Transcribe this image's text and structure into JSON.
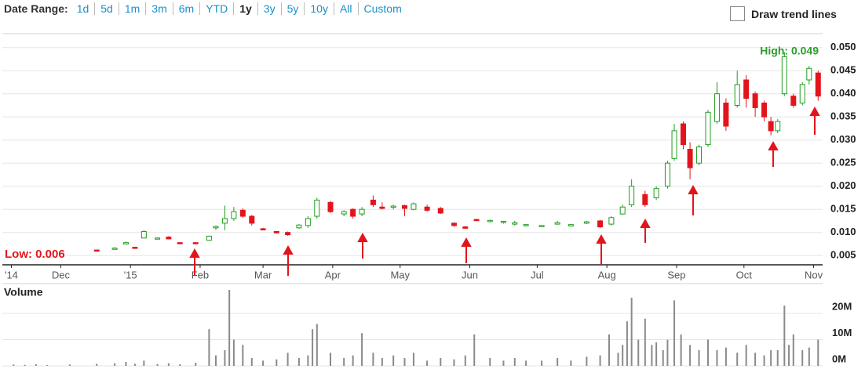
{
  "date_range": {
    "label": "Date Range:",
    "options": [
      "1d",
      "5d",
      "1m",
      "3m",
      "6m",
      "YTD",
      "1y",
      "3y",
      "5y",
      "10y",
      "All",
      "Custom"
    ],
    "selected": "1y"
  },
  "trend_toggle": {
    "label": "Draw trend lines"
  },
  "chart_data": [
    {
      "type": "candlestick",
      "annotations": [
        {
          "text": "High: 0.049",
          "color": "#2a9d2a"
        },
        {
          "text": "Low: 0.006",
          "color": "#e3141c"
        }
      ],
      "xlim": [
        0,
        365
      ],
      "xticks": [
        {
          "value": 4,
          "label": "'14"
        },
        {
          "value": 26,
          "label": "Dec"
        },
        {
          "value": 57,
          "label": "'15"
        },
        {
          "value": 88,
          "label": "Feb"
        },
        {
          "value": 116,
          "label": "Mar"
        },
        {
          "value": 147,
          "label": "Apr"
        },
        {
          "value": 177,
          "label": "May"
        },
        {
          "value": 208,
          "label": "Jun"
        },
        {
          "value": 238,
          "label": "Jul"
        },
        {
          "value": 269,
          "label": "Aug"
        },
        {
          "value": 300,
          "label": "Sep"
        },
        {
          "value": 330,
          "label": "Oct"
        },
        {
          "value": 361,
          "label": "Nov"
        }
      ],
      "ylim": [
        0.003,
        0.053
      ],
      "yticks": [
        0.005,
        {
          "value": 0.01,
          "label": "0.010"
        },
        0.015,
        {
          "value": 0.02,
          "label": "0.020"
        },
        0.025,
        {
          "value": 0.03,
          "label": "0.030"
        },
        0.035,
        {
          "value": 0.04,
          "label": "0.040"
        },
        0.045,
        {
          "value": 0.05,
          "label": "0.050"
        }
      ],
      "grid": true,
      "up_color": "#1e9e1e",
      "down_color": "#e3141c",
      "x": [
        42,
        50,
        55,
        59,
        63,
        69,
        74,
        79,
        86,
        92,
        95,
        99,
        103,
        107,
        111,
        116,
        122,
        127,
        132,
        136,
        140,
        146,
        152,
        156,
        160,
        165,
        169,
        174,
        179,
        183,
        189,
        195,
        201,
        206,
        211,
        217,
        223,
        228,
        233,
        240,
        247,
        253,
        260,
        266,
        271,
        276,
        280,
        286,
        291,
        296,
        299,
        303,
        306,
        310,
        314,
        318,
        322,
        327,
        331,
        335,
        339,
        342,
        345,
        348,
        352,
        356,
        359,
        363
      ],
      "open": [
        0.0062,
        0.0065,
        0.0075,
        0.0068,
        0.0088,
        0.0088,
        0.009,
        0.0078,
        0.0078,
        0.0083,
        0.011,
        0.012,
        0.013,
        0.0148,
        0.0135,
        0.0108,
        0.0102,
        0.01,
        0.011,
        0.0115,
        0.0135,
        0.0165,
        0.014,
        0.015,
        0.014,
        0.017,
        0.0155,
        0.0155,
        0.0158,
        0.015,
        0.0155,
        0.0152,
        0.012,
        0.0112,
        0.0128,
        0.0125,
        0.0122,
        0.0118,
        0.0115,
        0.0114,
        0.0118,
        0.0114,
        0.012,
        0.0125,
        0.0118,
        0.014,
        0.016,
        0.0182,
        0.0175,
        0.02,
        0.026,
        0.0335,
        0.028,
        0.025,
        0.029,
        0.034,
        0.038,
        0.0375,
        0.043,
        0.04,
        0.038,
        0.034,
        0.032,
        0.04,
        0.0395,
        0.038,
        0.043,
        0.0445
      ],
      "high": [
        0.0063,
        0.0068,
        0.008,
        0.0069,
        0.0105,
        0.0089,
        0.0092,
        0.0079,
        0.0079,
        0.0093,
        0.0115,
        0.0158,
        0.0155,
        0.0152,
        0.0138,
        0.011,
        0.0103,
        0.0102,
        0.0118,
        0.0135,
        0.0175,
        0.0168,
        0.0148,
        0.0152,
        0.0155,
        0.018,
        0.0165,
        0.016,
        0.016,
        0.0165,
        0.016,
        0.0155,
        0.0122,
        0.0114,
        0.013,
        0.0128,
        0.0125,
        0.0125,
        0.0118,
        0.0116,
        0.0125,
        0.0118,
        0.0125,
        0.0127,
        0.0135,
        0.016,
        0.0215,
        0.019,
        0.02,
        0.0255,
        0.0335,
        0.034,
        0.0295,
        0.029,
        0.0365,
        0.0425,
        0.039,
        0.045,
        0.044,
        0.0405,
        0.0385,
        0.035,
        0.0345,
        0.049,
        0.04,
        0.0425,
        0.046,
        0.045
      ],
      "low": [
        0.006,
        0.0064,
        0.0074,
        0.0066,
        0.0087,
        0.0087,
        0.0085,
        0.0076,
        0.0076,
        0.0082,
        0.0105,
        0.0105,
        0.0125,
        0.0132,
        0.0115,
        0.0105,
        0.0098,
        0.0093,
        0.0108,
        0.011,
        0.013,
        0.0142,
        0.0135,
        0.013,
        0.0135,
        0.0155,
        0.015,
        0.015,
        0.0135,
        0.0148,
        0.0145,
        0.014,
        0.0112,
        0.0108,
        0.0125,
        0.0122,
        0.0119,
        0.0115,
        0.0113,
        0.0112,
        0.0117,
        0.0113,
        0.0118,
        0.011,
        0.0115,
        0.0138,
        0.0155,
        0.0155,
        0.017,
        0.0195,
        0.0255,
        0.028,
        0.0215,
        0.0245,
        0.0285,
        0.0335,
        0.032,
        0.037,
        0.037,
        0.035,
        0.034,
        0.031,
        0.0315,
        0.0395,
        0.037,
        0.0375,
        0.042,
        0.0385
      ],
      "close": [
        0.006,
        0.0066,
        0.0078,
        0.0067,
        0.0102,
        0.0088,
        0.0086,
        0.0077,
        0.0077,
        0.0092,
        0.0113,
        0.013,
        0.0145,
        0.0135,
        0.012,
        0.0107,
        0.0099,
        0.0095,
        0.0116,
        0.013,
        0.017,
        0.0145,
        0.0145,
        0.0135,
        0.015,
        0.016,
        0.0152,
        0.0157,
        0.0152,
        0.0162,
        0.0148,
        0.0142,
        0.0115,
        0.0109,
        0.0127,
        0.0126,
        0.0124,
        0.0121,
        0.0117,
        0.0115,
        0.0121,
        0.0117,
        0.0123,
        0.0112,
        0.0132,
        0.0155,
        0.02,
        0.016,
        0.0195,
        0.025,
        0.032,
        0.029,
        0.024,
        0.0285,
        0.036,
        0.04,
        0.033,
        0.042,
        0.039,
        0.037,
        0.035,
        0.032,
        0.034,
        0.048,
        0.0375,
        0.042,
        0.0455,
        0.0395
      ]
    },
    {
      "type": "bar",
      "title": "Volume",
      "color": "#8a8a8a",
      "xlim": [
        0,
        365
      ],
      "ylim": [
        0,
        29000000
      ],
      "yticks": [
        {
          "value": 0,
          "label": "0M"
        },
        {
          "value": 10000000,
          "label": "10M"
        },
        {
          "value": 20000000,
          "label": "20M"
        }
      ],
      "grid": true,
      "x": [
        5,
        10,
        15,
        20,
        30,
        42,
        50,
        55,
        59,
        63,
        69,
        74,
        79,
        86,
        92,
        95,
        99,
        101,
        103,
        107,
        111,
        116,
        122,
        127,
        132,
        136,
        138,
        140,
        146,
        152,
        156,
        160,
        165,
        169,
        174,
        179,
        183,
        189,
        195,
        201,
        206,
        210,
        217,
        223,
        228,
        233,
        240,
        247,
        253,
        260,
        266,
        270,
        274,
        276,
        278,
        280,
        283,
        286,
        289,
        291,
        294,
        296,
        299,
        302,
        306,
        310,
        314,
        318,
        322,
        327,
        331,
        335,
        339,
        342,
        345,
        348,
        350,
        352,
        356,
        359,
        363
      ],
      "values": [
        500000,
        400000,
        600000,
        300000,
        500000,
        800000,
        1000000,
        1500000,
        800000,
        2000000,
        700000,
        1000000,
        600000,
        1200000,
        14000000,
        4000000,
        6000000,
        29000000,
        10000000,
        8000000,
        3000000,
        2000000,
        2500000,
        5000000,
        3000000,
        4000000,
        14000000,
        16000000,
        5000000,
        3000000,
        4000000,
        12500000,
        5000000,
        3000000,
        4000000,
        3000000,
        5000000,
        2000000,
        3000000,
        2500000,
        4000000,
        12000000,
        3000000,
        2000000,
        3000000,
        2000000,
        2000000,
        3000000,
        2000000,
        3500000,
        4000000,
        12000000,
        5000000,
        8000000,
        17000000,
        26000000,
        10000000,
        18000000,
        8000000,
        9000000,
        6000000,
        10000000,
        25000000,
        12000000,
        8000000,
        6000000,
        10000000,
        6000000,
        7000000,
        5000000,
        8000000,
        5000000,
        4000000,
        6000000,
        6000000,
        23000000,
        8000000,
        12000000,
        6000000,
        7000000,
        10000000
      ]
    }
  ]
}
